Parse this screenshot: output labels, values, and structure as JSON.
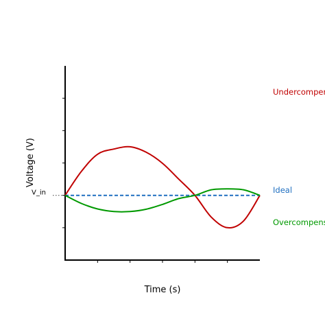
{
  "chart_data": {
    "type": "line",
    "title": "",
    "xlabel": "Time (s)",
    "ylabel": "Voltage (V)",
    "xlim": [
      0,
      6
    ],
    "ylim": [
      -2,
      4
    ],
    "grid": false,
    "reference": {
      "label": "V_in",
      "y": 0
    },
    "x_ticks": [
      1,
      2,
      3,
      4,
      5
    ],
    "y_ticks": [
      -1,
      0,
      1,
      2,
      3
    ],
    "series": [
      {
        "name": "Undercompensated",
        "color": "#c00000",
        "style": "solid",
        "points": [
          [
            0,
            0
          ],
          [
            0.5,
            0.74
          ],
          [
            1,
            1.27
          ],
          [
            1.5,
            1.43
          ],
          [
            2,
            1.5
          ],
          [
            2.5,
            1.33
          ],
          [
            3,
            0.99
          ],
          [
            3.5,
            0.5
          ],
          [
            4,
            0.0
          ],
          [
            4.5,
            -0.67
          ],
          [
            5,
            -1.0
          ],
          [
            5.5,
            -0.79
          ],
          [
            6,
            0.0
          ]
        ]
      },
      {
        "name": "Ideal",
        "color": "#1f6fc0",
        "style": "dashed",
        "points": [
          [
            0,
            0
          ],
          [
            6,
            0
          ]
        ]
      },
      {
        "name": "Overcompensated",
        "color": "#009900",
        "style": "solid",
        "points": [
          [
            0,
            0
          ],
          [
            0.5,
            -0.25
          ],
          [
            1,
            -0.42
          ],
          [
            1.5,
            -0.5
          ],
          [
            2,
            -0.5
          ],
          [
            2.5,
            -0.43
          ],
          [
            3,
            -0.28
          ],
          [
            3.5,
            -0.1
          ],
          [
            4,
            0.0
          ],
          [
            4.5,
            0.17
          ],
          [
            5,
            0.2
          ],
          [
            5.5,
            0.17
          ],
          [
            6,
            0.0
          ]
        ]
      }
    ]
  }
}
